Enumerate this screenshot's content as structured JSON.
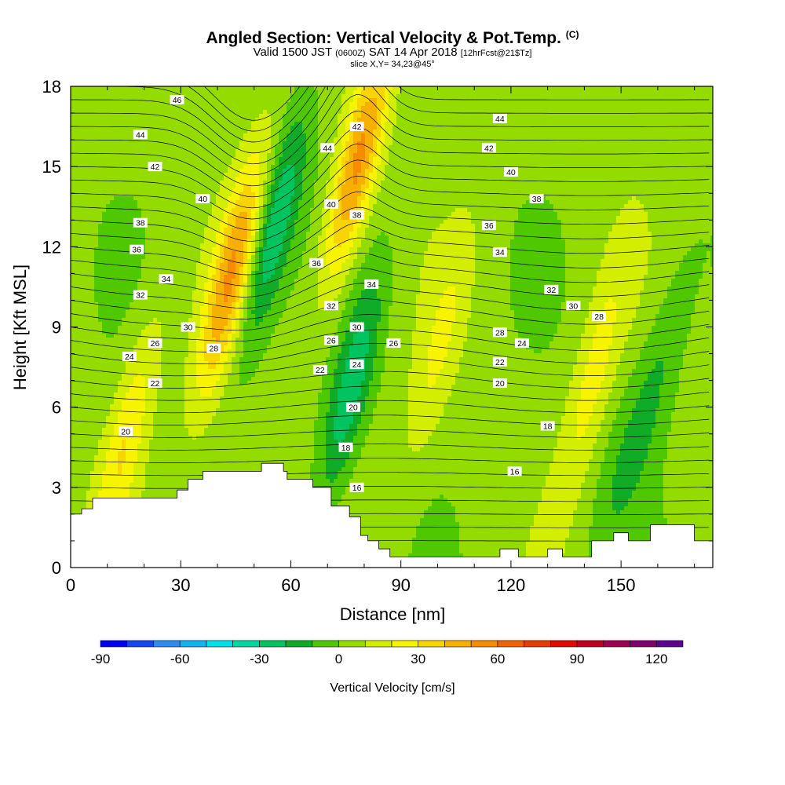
{
  "header": {
    "title": "Angled Section: Vertical Velocity & Pot.Temp.",
    "title_units": "(C)",
    "valid_prefix": "Valid 1500 JST",
    "valid_z": "(0600Z)",
    "valid_date": "SAT 14 Apr 2018",
    "valid_fcst": "[12hrFcst@21$Tz]",
    "slice": "slice X,Y= 34,23@45°"
  },
  "colors": {
    "scale": [
      "#0000f0",
      "#1646f0",
      "#2a8cf0",
      "#10b4f0",
      "#00e0e8",
      "#00d8a0",
      "#00c460",
      "#10ac28",
      "#50c800",
      "#94dc00",
      "#d4ee00",
      "#f8f400",
      "#f8d400",
      "#f8b000",
      "#f88c00",
      "#f06400",
      "#e83c00",
      "#e00800",
      "#c00020",
      "#a00050",
      "#800070",
      "#600090"
    ],
    "background": "#ffffff",
    "contour": "#000000"
  },
  "chart_data": {
    "type": "heatmap",
    "title": "Angled Section: Vertical Velocity & Pot.Temp. (C)",
    "xlabel": "Distance [nm]",
    "ylabel": "Height [Kft MSL]",
    "xlim": [
      0,
      175
    ],
    "ylim": [
      0,
      18
    ],
    "xticks": [
      0,
      30,
      60,
      90,
      120,
      150
    ],
    "yticks": [
      0,
      3,
      6,
      9,
      12,
      15,
      18
    ],
    "colorbar": {
      "label": "Vertical Velocity [cm/s]",
      "range": [
        -90,
        130
      ],
      "step": 10,
      "tick_values": [
        -90,
        -60,
        -30,
        0,
        30,
        60,
        90,
        120
      ]
    },
    "terrain": [
      [
        0,
        2
      ],
      [
        3,
        2
      ],
      [
        3,
        2.2
      ],
      [
        6,
        2.2
      ],
      [
        6,
        2.6
      ],
      [
        29,
        2.6
      ],
      [
        29,
        2.9
      ],
      [
        32,
        2.9
      ],
      [
        32,
        3.3
      ],
      [
        36,
        3.3
      ],
      [
        36,
        3.6
      ],
      [
        52,
        3.6
      ],
      [
        52,
        3.9
      ],
      [
        58,
        3.9
      ],
      [
        58,
        3.6
      ],
      [
        59,
        3.6
      ],
      [
        59,
        3.3
      ],
      [
        66,
        3.3
      ],
      [
        66,
        3
      ],
      [
        71,
        3
      ],
      [
        71,
        2.3
      ],
      [
        76,
        2.3
      ],
      [
        76,
        1.9
      ],
      [
        79,
        1.9
      ],
      [
        79,
        1.2
      ],
      [
        81,
        1.2
      ],
      [
        81,
        1
      ],
      [
        84,
        1
      ],
      [
        84,
        0.7
      ],
      [
        87,
        0.7
      ],
      [
        87,
        0.4
      ],
      [
        117,
        0.4
      ],
      [
        117,
        0.7
      ],
      [
        122,
        0.7
      ],
      [
        122,
        0.4
      ],
      [
        130,
        0.4
      ],
      [
        130,
        0.7
      ],
      [
        134,
        0.7
      ],
      [
        134,
        0.4
      ],
      [
        142,
        0.4
      ],
      [
        142,
        1
      ],
      [
        148,
        1
      ],
      [
        148,
        1.3
      ],
      [
        152,
        1.3
      ],
      [
        152,
        1
      ],
      [
        158,
        1
      ],
      [
        158,
        1.6
      ],
      [
        170,
        1.6
      ],
      [
        170,
        1
      ],
      [
        175,
        1
      ]
    ],
    "updrafts": [
      {
        "x": 44,
        "z": 11,
        "w": 45
      },
      {
        "x": 78,
        "z": 15,
        "w": 50
      },
      {
        "x": 15,
        "z": 4.8,
        "w": 25
      },
      {
        "x": 142,
        "z": 7,
        "w": 20
      },
      {
        "x": 100,
        "z": 8,
        "w": 15
      }
    ],
    "downdrafts": [
      {
        "x": 55,
        "z": 12.5,
        "w": -35
      },
      {
        "x": 76,
        "z": 6.5,
        "w": -30
      },
      {
        "x": 160,
        "z": 7,
        "w": -15
      },
      {
        "x": 150,
        "z": 4,
        "w": -10
      }
    ],
    "contour_label_values": [
      16,
      18,
      20,
      22,
      24,
      26,
      28,
      30,
      32,
      34,
      36,
      38,
      40,
      42,
      44,
      46
    ],
    "theta_labels": [
      {
        "x": 29,
        "z": 17.5,
        "text": "46"
      },
      {
        "x": 19,
        "z": 16.2,
        "text": "44"
      },
      {
        "x": 23,
        "z": 15.0,
        "text": "42"
      },
      {
        "x": 36,
        "z": 13.8,
        "text": "40"
      },
      {
        "x": 19,
        "z": 12.9,
        "text": "38"
      },
      {
        "x": 18,
        "z": 11.9,
        "text": "36"
      },
      {
        "x": 26,
        "z": 10.8,
        "text": "34"
      },
      {
        "x": 19,
        "z": 10.2,
        "text": "32"
      },
      {
        "x": 32,
        "z": 9.0,
        "text": "30"
      },
      {
        "x": 23,
        "z": 8.4,
        "text": "26"
      },
      {
        "x": 39,
        "z": 8.2,
        "text": "28"
      },
      {
        "x": 16,
        "z": 7.9,
        "text": "24"
      },
      {
        "x": 23,
        "z": 6.9,
        "text": "22"
      },
      {
        "x": 15,
        "z": 5.1,
        "text": "20"
      },
      {
        "x": 70,
        "z": 15.7,
        "text": "44"
      },
      {
        "x": 78,
        "z": 16.5,
        "text": "42"
      },
      {
        "x": 71,
        "z": 13.6,
        "text": "40"
      },
      {
        "x": 78,
        "z": 13.2,
        "text": "38"
      },
      {
        "x": 67,
        "z": 11.4,
        "text": "36"
      },
      {
        "x": 82,
        "z": 10.6,
        "text": "34"
      },
      {
        "x": 71,
        "z": 9.8,
        "text": "32"
      },
      {
        "x": 78,
        "z": 9.0,
        "text": "30"
      },
      {
        "x": 71,
        "z": 8.5,
        "text": "26"
      },
      {
        "x": 88,
        "z": 8.4,
        "text": "26"
      },
      {
        "x": 78,
        "z": 7.6,
        "text": "24"
      },
      {
        "x": 68,
        "z": 7.4,
        "text": "22"
      },
      {
        "x": 77,
        "z": 6.0,
        "text": "20"
      },
      {
        "x": 75,
        "z": 4.5,
        "text": "18"
      },
      {
        "x": 78,
        "z": 3.0,
        "text": "16"
      },
      {
        "x": 117,
        "z": 16.8,
        "text": "44"
      },
      {
        "x": 114,
        "z": 15.7,
        "text": "42"
      },
      {
        "x": 120,
        "z": 14.8,
        "text": "40"
      },
      {
        "x": 127,
        "z": 13.8,
        "text": "38"
      },
      {
        "x": 114,
        "z": 12.8,
        "text": "36"
      },
      {
        "x": 117,
        "z": 11.8,
        "text": "34"
      },
      {
        "x": 131,
        "z": 10.4,
        "text": "32"
      },
      {
        "x": 137,
        "z": 9.8,
        "text": "30"
      },
      {
        "x": 144,
        "z": 9.4,
        "text": "28"
      },
      {
        "x": 117,
        "z": 8.8,
        "text": "28"
      },
      {
        "x": 123,
        "z": 8.4,
        "text": "24"
      },
      {
        "x": 117,
        "z": 7.7,
        "text": "22"
      },
      {
        "x": 117,
        "z": 6.9,
        "text": "20"
      },
      {
        "x": 130,
        "z": 5.3,
        "text": "18"
      },
      {
        "x": 121,
        "z": 3.6,
        "text": "16"
      }
    ]
  }
}
